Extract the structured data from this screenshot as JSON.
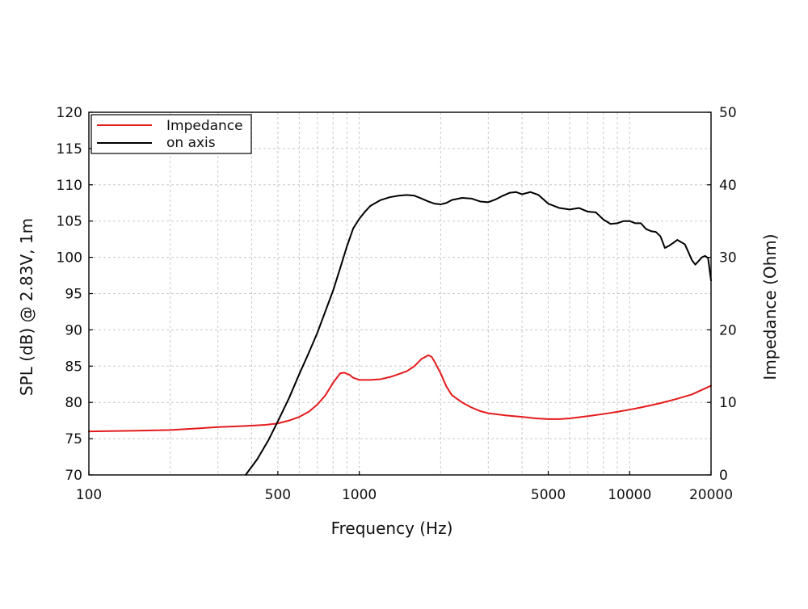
{
  "chart_data": {
    "type": "line",
    "xlabel": "Frequency (Hz)",
    "ylabel": "SPL (dB) @ 2.83V, 1m",
    "y2label": "Impedance (Ohm)",
    "xscale": "log",
    "xlim": [
      100,
      20000
    ],
    "ylim": [
      70,
      120
    ],
    "y2lim": [
      0,
      50
    ],
    "grid": true,
    "legend_position": "top-left",
    "x_tick_labels": [
      "100",
      "500",
      "1000",
      "5000",
      "10000",
      "20000"
    ],
    "x_tick_values": [
      100,
      500,
      1000,
      5000,
      10000,
      20000
    ],
    "y_tick_labels": [
      "70",
      "75",
      "80",
      "85",
      "90",
      "95",
      "100",
      "105",
      "110",
      "115",
      "120"
    ],
    "y2_tick_labels": [
      "0",
      "10",
      "20",
      "30",
      "40",
      "50"
    ],
    "series": [
      {
        "name": "Impedance",
        "axis": "right",
        "color": "#e41a1c",
        "points": [
          [
            100,
            6.0
          ],
          [
            150,
            6.1
          ],
          [
            200,
            6.2
          ],
          [
            250,
            6.4
          ],
          [
            300,
            6.6
          ],
          [
            350,
            6.7
          ],
          [
            400,
            6.8
          ],
          [
            450,
            6.9
          ],
          [
            500,
            7.1
          ],
          [
            550,
            7.5
          ],
          [
            600,
            8.0
          ],
          [
            650,
            8.7
          ],
          [
            700,
            9.7
          ],
          [
            750,
            11.0
          ],
          [
            800,
            12.7
          ],
          [
            850,
            14.0
          ],
          [
            880,
            14.1
          ],
          [
            920,
            13.8
          ],
          [
            950,
            13.4
          ],
          [
            1000,
            13.1
          ],
          [
            1100,
            13.1
          ],
          [
            1200,
            13.2
          ],
          [
            1300,
            13.5
          ],
          [
            1400,
            13.9
          ],
          [
            1500,
            14.3
          ],
          [
            1600,
            15.0
          ],
          [
            1700,
            16.0
          ],
          [
            1800,
            16.5
          ],
          [
            1850,
            16.3
          ],
          [
            1900,
            15.6
          ],
          [
            2000,
            14.0
          ],
          [
            2100,
            12.2
          ],
          [
            2200,
            11.0
          ],
          [
            2400,
            10.0
          ],
          [
            2600,
            9.3
          ],
          [
            2800,
            8.8
          ],
          [
            3000,
            8.5
          ],
          [
            3500,
            8.2
          ],
          [
            4000,
            8.0
          ],
          [
            4500,
            7.8
          ],
          [
            5000,
            7.7
          ],
          [
            5500,
            7.7
          ],
          [
            6000,
            7.8
          ],
          [
            7000,
            8.1
          ],
          [
            8000,
            8.4
          ],
          [
            9000,
            8.7
          ],
          [
            10000,
            9.0
          ],
          [
            11000,
            9.3
          ],
          [
            12000,
            9.6
          ],
          [
            13000,
            9.9
          ],
          [
            14000,
            10.2
          ],
          [
            15000,
            10.5
          ],
          [
            17000,
            11.1
          ],
          [
            20000,
            12.3
          ]
        ]
      },
      {
        "name": "on axis",
        "axis": "left",
        "color": "#000000",
        "points": [
          [
            380,
            70.0
          ],
          [
            420,
            72.2
          ],
          [
            460,
            74.7
          ],
          [
            500,
            77.4
          ],
          [
            550,
            80.6
          ],
          [
            600,
            83.9
          ],
          [
            650,
            86.8
          ],
          [
            700,
            89.6
          ],
          [
            750,
            92.6
          ],
          [
            800,
            95.4
          ],
          [
            850,
            98.5
          ],
          [
            900,
            101.5
          ],
          [
            950,
            104.0
          ],
          [
            1000,
            105.3
          ],
          [
            1050,
            106.3
          ],
          [
            1100,
            107.1
          ],
          [
            1200,
            107.9
          ],
          [
            1300,
            108.3
          ],
          [
            1400,
            108.5
          ],
          [
            1500,
            108.6
          ],
          [
            1600,
            108.5
          ],
          [
            1700,
            108.1
          ],
          [
            1800,
            107.7
          ],
          [
            1900,
            107.4
          ],
          [
            2000,
            107.3
          ],
          [
            2100,
            107.5
          ],
          [
            2200,
            107.9
          ],
          [
            2400,
            108.2
          ],
          [
            2600,
            108.1
          ],
          [
            2800,
            107.7
          ],
          [
            3000,
            107.6
          ],
          [
            3200,
            108.0
          ],
          [
            3400,
            108.5
          ],
          [
            3600,
            108.9
          ],
          [
            3800,
            109.0
          ],
          [
            4000,
            108.7
          ],
          [
            4300,
            109.0
          ],
          [
            4600,
            108.6
          ],
          [
            5000,
            107.4
          ],
          [
            5500,
            106.8
          ],
          [
            6000,
            106.6
          ],
          [
            6500,
            106.8
          ],
          [
            7000,
            106.3
          ],
          [
            7500,
            106.2
          ],
          [
            8000,
            105.2
          ],
          [
            8500,
            104.6
          ],
          [
            9000,
            104.7
          ],
          [
            9500,
            105.0
          ],
          [
            10000,
            105.0
          ],
          [
            10500,
            104.7
          ],
          [
            11000,
            104.7
          ],
          [
            11500,
            103.9
          ],
          [
            12000,
            103.6
          ],
          [
            12500,
            103.5
          ],
          [
            13000,
            102.9
          ],
          [
            13500,
            101.3
          ],
          [
            14000,
            101.6
          ],
          [
            14500,
            102.0
          ],
          [
            15000,
            102.4
          ],
          [
            15500,
            102.1
          ],
          [
            16000,
            101.8
          ],
          [
            16500,
            100.7
          ],
          [
            17000,
            99.6
          ],
          [
            17500,
            99.0
          ],
          [
            18000,
            99.5
          ],
          [
            18500,
            100.0
          ],
          [
            19000,
            100.2
          ],
          [
            19500,
            99.9
          ],
          [
            20000,
            96.8
          ]
        ]
      }
    ]
  }
}
